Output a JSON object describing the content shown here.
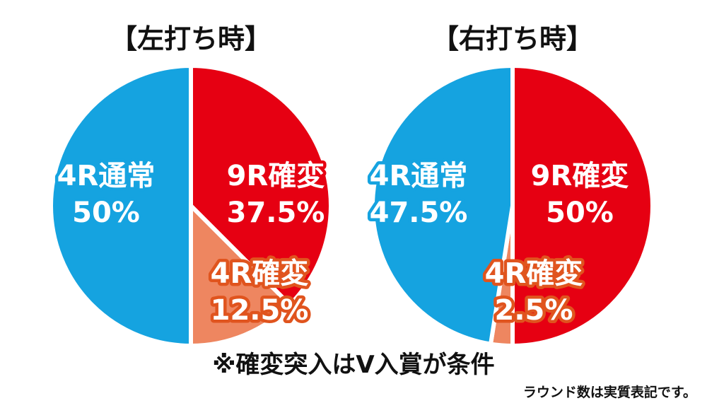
{
  "chart_data": [
    {
      "type": "pie",
      "title": "【左打ち時】",
      "slices": [
        {
          "label": "9R確変",
          "value_text": "37.5%",
          "value": 37.5,
          "color": "#e60012",
          "outline": "#e60012"
        },
        {
          "label": "4R確変",
          "value_text": "12.5%",
          "value": 12.5,
          "color": "#ee8660",
          "outline": "#e0541e"
        },
        {
          "label": "4R通常",
          "value_text": "50%",
          "value": 50,
          "color": "#15a3e0",
          "outline": "#15a3e0"
        }
      ]
    },
    {
      "type": "pie",
      "title": "【右打ち時】",
      "slices": [
        {
          "label": "9R確変",
          "value_text": "50%",
          "value": 50,
          "color": "#e60012",
          "outline": "#e60012"
        },
        {
          "label": "4R確変",
          "value_text": "2.5%",
          "value": 2.5,
          "color": "#ee8660",
          "outline": "#e0541e"
        },
        {
          "label": "4R通常",
          "value_text": "47.5%",
          "value": 47.5,
          "color": "#15a3e0",
          "outline": "#15a3e0"
        }
      ]
    }
  ],
  "note": "※確変突入はV入賞が条件",
  "footnote": "ラウンド数は実質表記です。"
}
